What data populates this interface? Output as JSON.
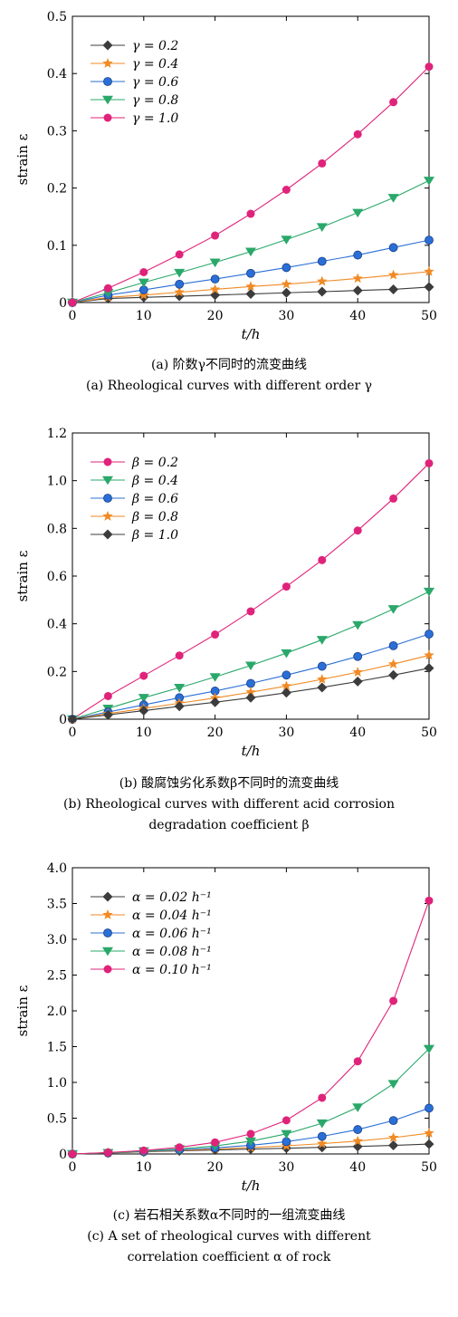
{
  "chart_data": [
    {
      "type": "line",
      "ylabel": "strain ε",
      "xlabel": "t/h",
      "xlim": [
        0,
        50
      ],
      "ylim": [
        0,
        0.5
      ],
      "xticks": [
        "0",
        "10",
        "20",
        "30",
        "40",
        "50"
      ],
      "yticks": [
        "0",
        "0.1",
        "0.2",
        "0.3",
        "0.4",
        "0.5"
      ],
      "legend_position": "top-left",
      "caption_cn": "(a) 阶数γ不同时的流变曲线",
      "caption_en": "(a) Rheological curves with different order γ",
      "x": [
        0,
        5,
        10,
        15,
        20,
        25,
        30,
        35,
        40,
        45,
        50
      ],
      "series": [
        {
          "name": "γ = 0.2",
          "color": "#3c3c3c",
          "marker": "diamond",
          "values": [
            0,
            0.007,
            0.009,
            0.011,
            0.013,
            0.015,
            0.017,
            0.019,
            0.021,
            0.023,
            0.027
          ]
        },
        {
          "name": "γ = 0.4",
          "color": "#f08a24",
          "marker": "star",
          "values": [
            0,
            0.009,
            0.013,
            0.018,
            0.023,
            0.028,
            0.032,
            0.037,
            0.042,
            0.048,
            0.054
          ]
        },
        {
          "name": "γ = 0.6",
          "color": "#2a6fd6",
          "marker": "circle",
          "values": [
            0,
            0.013,
            0.022,
            0.032,
            0.041,
            0.051,
            0.061,
            0.072,
            0.083,
            0.096,
            0.109
          ]
        },
        {
          "name": "γ = 0.8",
          "color": "#2aa86a",
          "marker": "triangle",
          "values": [
            0,
            0.017,
            0.035,
            0.052,
            0.07,
            0.089,
            0.11,
            0.132,
            0.157,
            0.183,
            0.213
          ]
        },
        {
          "name": "γ = 1.0",
          "color": "#e0237a",
          "marker": "dot",
          "values": [
            0,
            0.025,
            0.053,
            0.084,
            0.117,
            0.155,
            0.197,
            0.243,
            0.294,
            0.35,
            0.412
          ]
        }
      ]
    },
    {
      "type": "line",
      "ylabel": "strain ε",
      "xlabel": "t/h",
      "xlim": [
        0,
        50
      ],
      "ylim": [
        0,
        1.2
      ],
      "xticks": [
        "0",
        "10",
        "20",
        "30",
        "40",
        "50"
      ],
      "yticks": [
        "0",
        "0.2",
        "0.4",
        "0.6",
        "0.8",
        "1.0",
        "1.2"
      ],
      "legend_position": "top-left",
      "caption_cn": "(b) 酸腐蚀劣化系数β不同时的流变曲线",
      "caption_en": "(b) Rheological curves with different acid corrosion",
      "caption_en2": "degradation coefficient β",
      "x": [
        0,
        5,
        10,
        15,
        20,
        25,
        30,
        35,
        40,
        45,
        50
      ],
      "series": [
        {
          "name": "β = 0.2",
          "color": "#e0237a",
          "marker": "dot",
          "values": [
            0,
            0.097,
            0.182,
            0.267,
            0.355,
            0.452,
            0.556,
            0.667,
            0.791,
            0.925,
            1.073
          ]
        },
        {
          "name": "β = 0.4",
          "color": "#2aa86a",
          "marker": "triangle",
          "values": [
            0,
            0.045,
            0.09,
            0.132,
            0.177,
            0.225,
            0.277,
            0.333,
            0.395,
            0.462,
            0.535
          ]
        },
        {
          "name": "β = 0.6",
          "color": "#2a6fd6",
          "marker": "circle",
          "values": [
            0,
            0.03,
            0.06,
            0.09,
            0.118,
            0.15,
            0.185,
            0.222,
            0.263,
            0.308,
            0.357
          ]
        },
        {
          "name": "β = 0.8",
          "color": "#f08a24",
          "marker": "star",
          "values": [
            0,
            0.023,
            0.045,
            0.067,
            0.089,
            0.113,
            0.139,
            0.167,
            0.197,
            0.231,
            0.268
          ]
        },
        {
          "name": "β = 1.0",
          "color": "#3c3c3c",
          "marker": "diamond",
          "values": [
            0,
            0.018,
            0.036,
            0.054,
            0.071,
            0.09,
            0.111,
            0.133,
            0.158,
            0.185,
            0.214
          ]
        }
      ]
    },
    {
      "type": "line",
      "ylabel": "strain ε",
      "xlabel": "t/h",
      "xlim": [
        0,
        50
      ],
      "ylim": [
        0,
        4.0
      ],
      "xticks": [
        "0",
        "10",
        "20",
        "30",
        "40",
        "50"
      ],
      "yticks": [
        "0",
        "0.5",
        "1.0",
        "1.5",
        "2.0",
        "2.5",
        "3.0",
        "3.5",
        "4.0"
      ],
      "legend_position": "top-left",
      "caption_cn": "(c) 岩石相关系数α不同时的一组流变曲线",
      "caption_en": "(c) A set of rheological curves with different",
      "caption_en2": "correlation coefficient α of rock",
      "x": [
        0,
        5,
        10,
        15,
        20,
        25,
        30,
        35,
        40,
        45,
        50
      ],
      "series": [
        {
          "name": "α = 0.02 h⁻¹",
          "color": "#3c3c3c",
          "marker": "diamond",
          "values": [
            0,
            0.014,
            0.029,
            0.043,
            0.056,
            0.068,
            0.08,
            0.092,
            0.105,
            0.12,
            0.138
          ]
        },
        {
          "name": "α = 0.04 h⁻¹",
          "color": "#f08a24",
          "marker": "star",
          "values": [
            0,
            0.015,
            0.031,
            0.049,
            0.068,
            0.089,
            0.114,
            0.144,
            0.18,
            0.228,
            0.29
          ]
        },
        {
          "name": "α = 0.06 h⁻¹",
          "color": "#2a6fd6",
          "marker": "circle",
          "values": [
            0,
            0.016,
            0.035,
            0.057,
            0.085,
            0.121,
            0.172,
            0.245,
            0.341,
            0.467,
            0.64
          ]
        },
        {
          "name": "α = 0.08 h⁻¹",
          "color": "#2aa86a",
          "marker": "triangle",
          "values": [
            0,
            0.017,
            0.04,
            0.07,
            0.112,
            0.178,
            0.281,
            0.429,
            0.652,
            0.98,
            1.47
          ]
        },
        {
          "name": "α = 0.10 h⁻¹",
          "color": "#e0237a",
          "marker": "dot",
          "values": [
            0,
            0.02,
            0.048,
            0.092,
            0.162,
            0.28,
            0.47,
            0.785,
            1.295,
            2.14,
            3.54
          ]
        }
      ]
    }
  ]
}
